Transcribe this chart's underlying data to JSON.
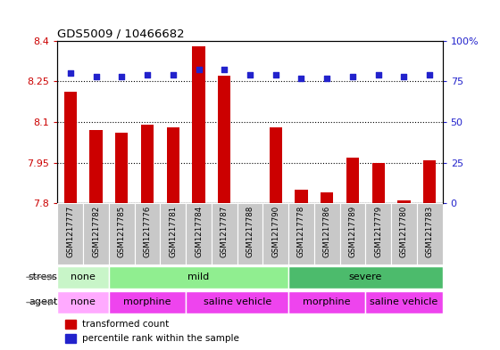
{
  "title": "GDS5009 / 10466682",
  "samples": [
    "GSM1217777",
    "GSM1217782",
    "GSM1217785",
    "GSM1217776",
    "GSM1217781",
    "GSM1217784",
    "GSM1217787",
    "GSM1217788",
    "GSM1217790",
    "GSM1217778",
    "GSM1217786",
    "GSM1217789",
    "GSM1217779",
    "GSM1217780",
    "GSM1217783"
  ],
  "transformed_count": [
    8.21,
    8.07,
    8.06,
    8.09,
    8.08,
    8.38,
    8.27,
    7.8,
    8.08,
    7.85,
    7.84,
    7.97,
    7.95,
    7.81,
    7.96
  ],
  "percentile_rank": [
    80,
    78,
    78,
    79,
    79,
    82,
    82,
    79,
    79,
    77,
    77,
    78,
    79,
    78,
    79
  ],
  "ylim_left": [
    7.8,
    8.4
  ],
  "ylim_right": [
    0,
    100
  ],
  "yticks_left": [
    7.8,
    7.95,
    8.1,
    8.25,
    8.4
  ],
  "yticks_right": [
    0,
    25,
    50,
    75,
    100
  ],
  "bar_color": "#cc0000",
  "dot_color": "#2222cc",
  "bar_baseline": 7.8,
  "stress_groups": [
    {
      "label": "none",
      "start": 0,
      "end": 2,
      "color": "#c8f5c8"
    },
    {
      "label": "mild",
      "start": 2,
      "end": 9,
      "color": "#90ee90"
    },
    {
      "label": "severe",
      "start": 9,
      "end": 15,
      "color": "#4cbb6c"
    }
  ],
  "agent_groups": [
    {
      "label": "none",
      "start": 0,
      "end": 2,
      "color": "#ffaaff"
    },
    {
      "label": "morphine",
      "start": 2,
      "end": 5,
      "color": "#ff66ff"
    },
    {
      "label": "saline vehicle",
      "start": 5,
      "end": 9,
      "color": "#ff66ff"
    },
    {
      "label": "morphine",
      "start": 9,
      "end": 12,
      "color": "#ff66ff"
    },
    {
      "label": "saline vehicle",
      "start": 12,
      "end": 15,
      "color": "#ff66ff"
    }
  ],
  "bg_color": "#ffffff",
  "tick_label_color_left": "#cc0000",
  "tick_label_color_right": "#2222cc",
  "legend_items": [
    {
      "label": "transformed count",
      "color": "#cc0000"
    },
    {
      "label": "percentile rank within the sample",
      "color": "#2222cc"
    }
  ],
  "xtick_bg_color": "#c8c8c8",
  "bar_width": 0.5
}
